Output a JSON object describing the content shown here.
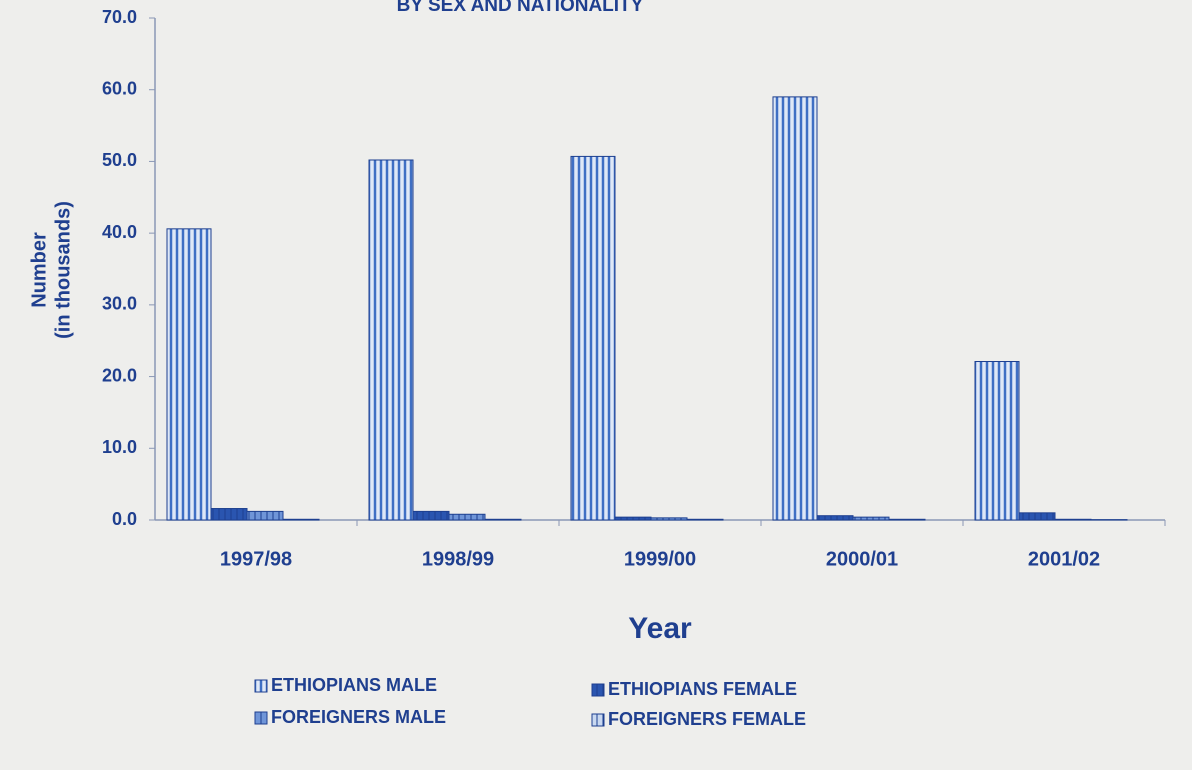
{
  "chart_data": {
    "type": "bar",
    "title": "BY SEX AND NATIONALITY",
    "y_label": [
      "Number",
      "(in thousands)"
    ],
    "x_label": "Year",
    "categories": [
      "1997/98",
      "1998/99",
      "1999/00",
      "2000/01",
      "2001/02"
    ],
    "series": [
      {
        "name": "ETHIOPIANS  MALE",
        "color": "#3f6fc4",
        "values": [
          40.6,
          50.2,
          50.7,
          59.0,
          22.1
        ]
      },
      {
        "name": "ETHIOPIANS FEMALE",
        "color": "#2a55b0",
        "values": [
          1.6,
          1.2,
          0.4,
          0.6,
          1.0
        ]
      },
      {
        "name": "FOREIGNERS MALE",
        "color": "#6f95d8",
        "values": [
          1.2,
          0.8,
          0.3,
          0.4,
          0.1
        ]
      },
      {
        "name": "FOREIGNERS FEMALE",
        "color": "#c9d8f0",
        "values": [
          0.1,
          0.1,
          0.1,
          0.1,
          0.05
        ]
      }
    ],
    "ylim": [
      0,
      70
    ],
    "yticks": [
      {
        "value": 0,
        "label": "0.0"
      },
      {
        "value": 10,
        "label": "10.0"
      },
      {
        "value": 20,
        "label": "20.0"
      },
      {
        "value": 30,
        "label": "30.0"
      },
      {
        "value": 40,
        "label": "40.0"
      },
      {
        "value": 50,
        "label": "50.0"
      },
      {
        "value": 60,
        "label": "60.0"
      },
      {
        "value": 70,
        "label": "70.0"
      }
    ],
    "grid": false
  }
}
